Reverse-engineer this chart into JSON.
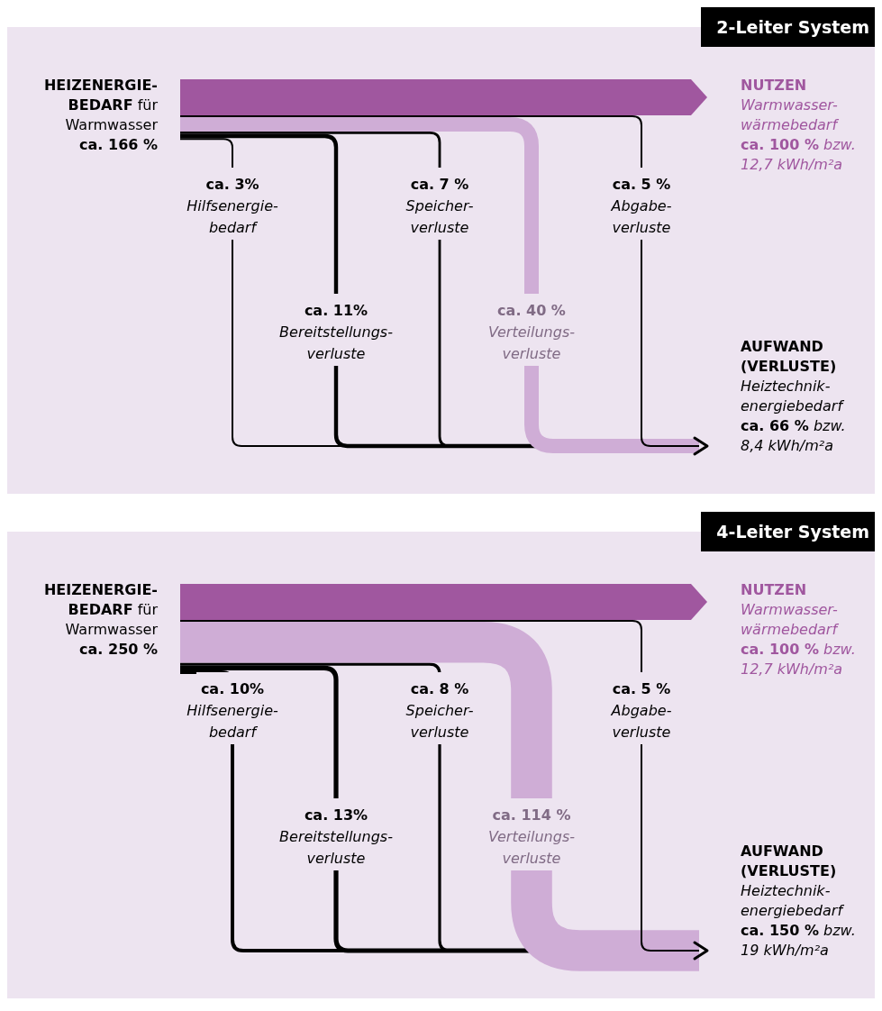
{
  "chart_data": [
    {
      "type": "other",
      "title": "2-Leiter System",
      "color": "#a0579f",
      "categories": [
        "Hilfsenergie-\nbedarf",
        "Bereitstellungs-\nverluste",
        "Speicher-\nverluste",
        "Verteilungs-\nverluste",
        "Abgabe-\nverluste"
      ],
      "values": [
        3,
        11,
        7,
        40,
        5
      ],
      "value_labels": [
        "ca. 3%",
        "ca. 11%",
        "ca. 7 %",
        "ca. 40 %",
        "ca. 5 %"
      ],
      "colors": [
        "#000000",
        "#000000",
        "#000000",
        "#cfadd6",
        "#000000"
      ],
      "annotations": [
        "HEIZENERGIE-\nBEDARF für\nWarmwasser\nca. 166 %",
        "NUTZEN\nWarmwasser-\nwärmebedarf\nca. 100 % bzw.\n12,7 kWh/m²a",
        "AUFWAND\n(VERLUSTE)\nHeiztechnik-\nenergiebedarf\nca. 66 % bzw.\n8,4 kWh/m²a"
      ]
    },
    {
      "type": "other",
      "title": "4-Leiter System",
      "color": "#a0579f",
      "categories": [
        "Hilfsenergie-\nbedarf",
        "Bereitstellungs-\nverluste",
        "Speicher-\nverluste",
        "Verteilungs-\nverluste",
        "Abgabe-\nverluste"
      ],
      "values": [
        10,
        13,
        8,
        114,
        5
      ],
      "value_labels": [
        "ca. 10%",
        "ca. 13%",
        "ca. 8 %",
        "ca. 114 %",
        "ca. 5 %"
      ],
      "colors": [
        "#000000",
        "#000000",
        "#000000",
        "#cfadd6",
        "#000000"
      ],
      "annotations": [
        "HEIZENERGIE-\nBEDARF für\nWarmwasser\nca. 250 %",
        "NUTZEN\nWarmwasser-\nwärmebedarf\nca. 100 % bzw.\n12,7 kWh/m²a",
        "AUFWAND\n(VERLUSTE)\nHeiztechnik-\nenergiebedarf\nca. 150 % bzw.\n19 kWh/m²a"
      ]
    }
  ]
}
